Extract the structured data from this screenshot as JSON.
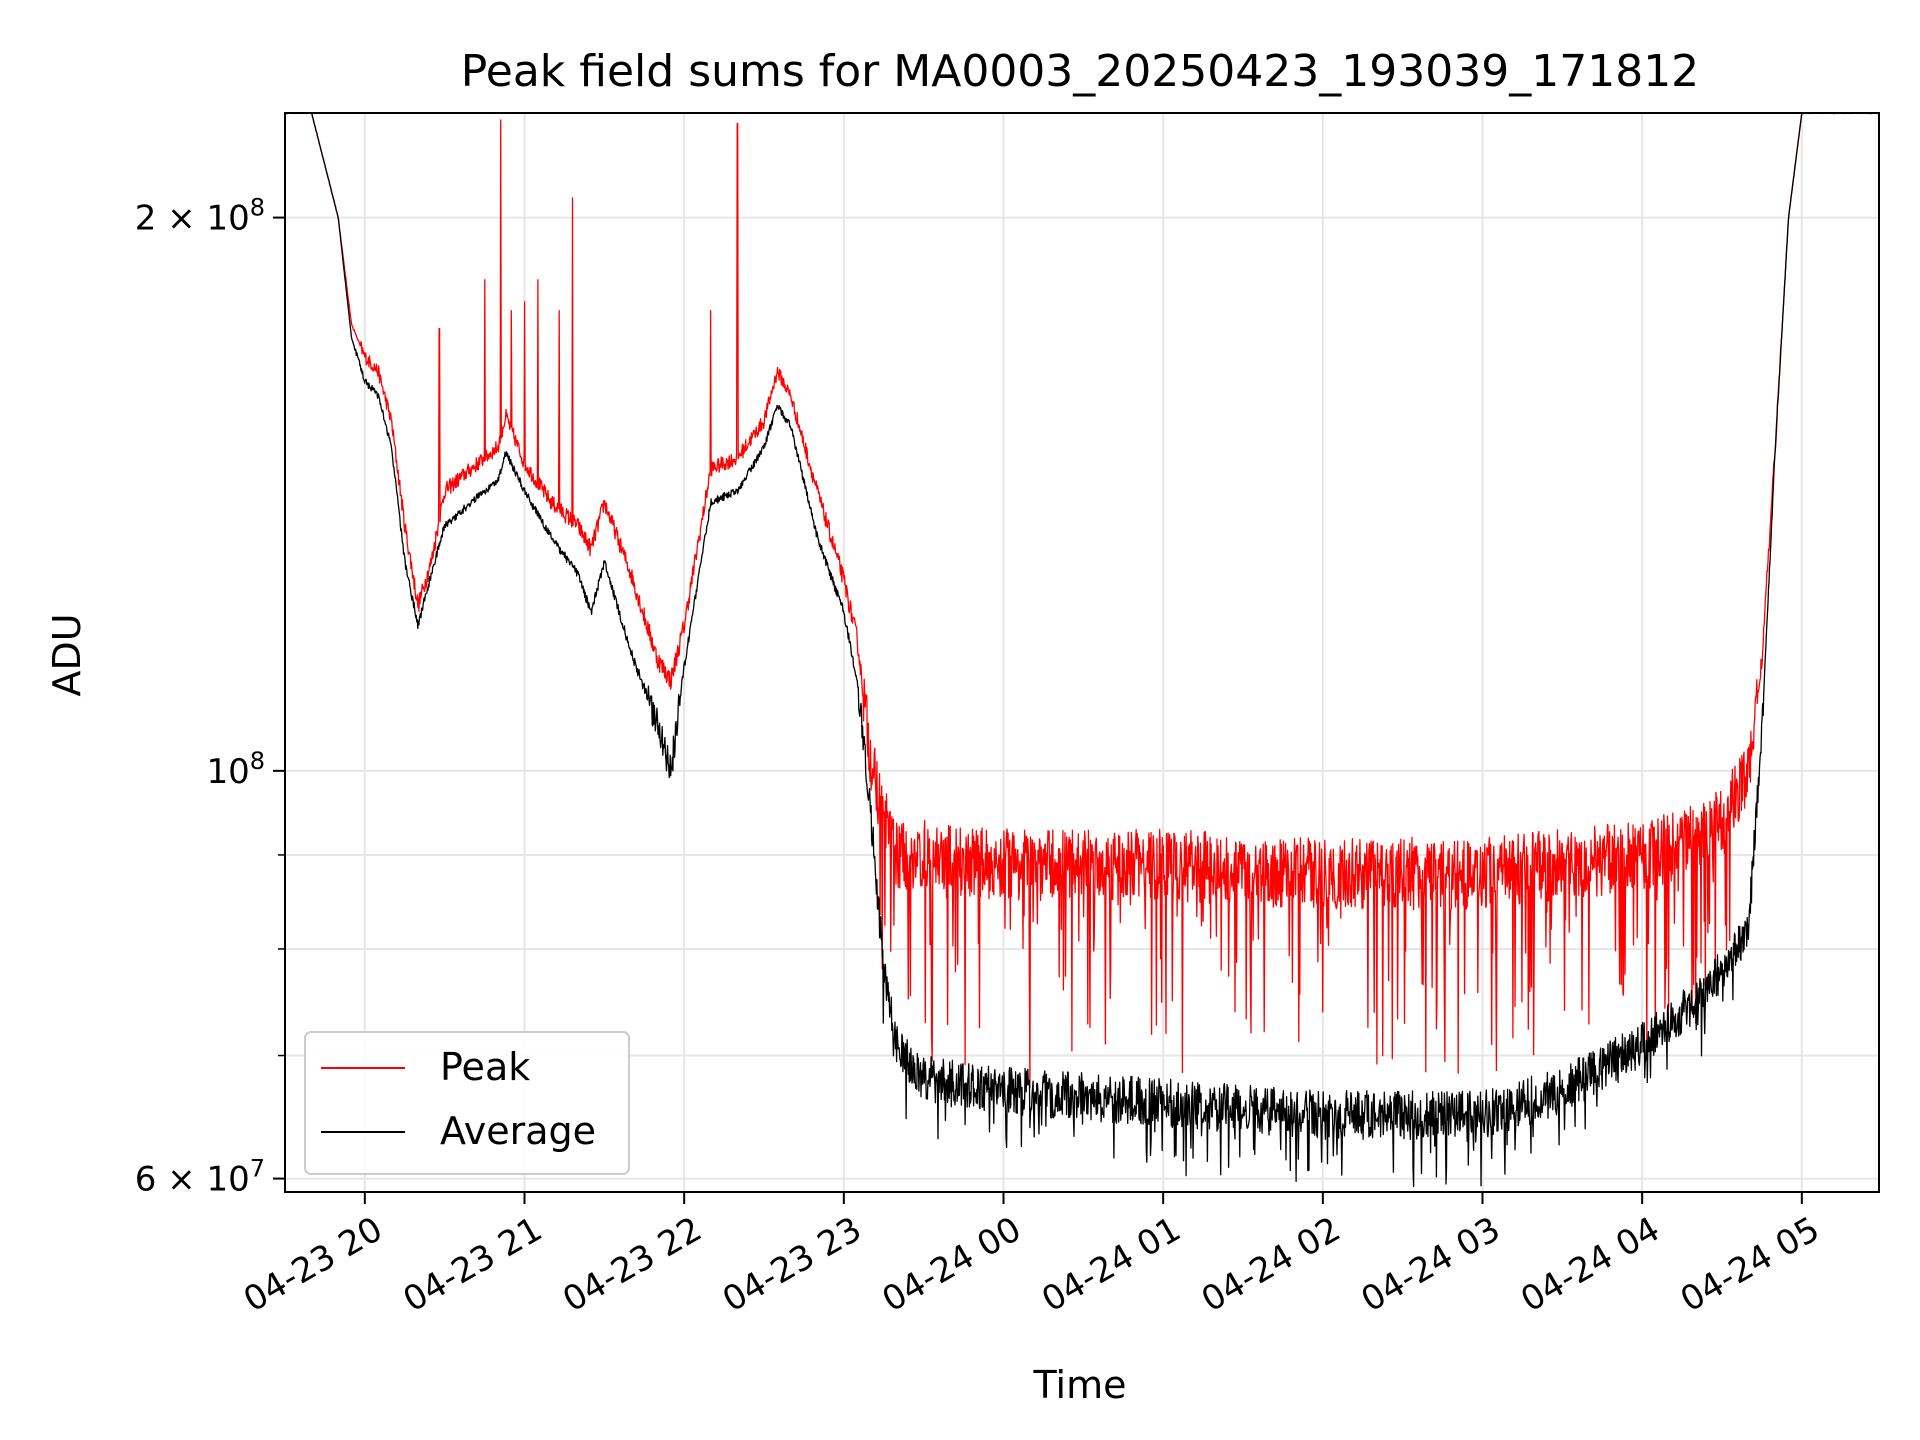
{
  "chart_data": {
    "type": "line",
    "title": "Peak field sums for MA0003_20250423_193039_171812",
    "xlabel": "Time",
    "ylabel": "ADU",
    "x_type": "time",
    "x_range": [
      "2025-04-23 19:30",
      "2025-04-24 05:29"
    ],
    "y_scale": "log",
    "y_range": [
      59000000,
      228000000
    ],
    "grid": true,
    "legend": {
      "position": "lower left",
      "entries": [
        "Peak",
        "Average"
      ]
    },
    "x_ticks": [
      "04-23 20",
      "04-23 21",
      "04-23 22",
      "04-23 23",
      "04-24 00",
      "04-24 01",
      "04-24 02",
      "04-24 03",
      "04-24 04",
      "04-24 05"
    ],
    "y_ticks": [
      {
        "value": 60000000,
        "label": "6 × 10",
        "exp": "7"
      },
      {
        "value": 100000000,
        "label": "10",
        "exp": "8"
      },
      {
        "value": 200000000,
        "label": "2 × 10",
        "exp": "8"
      }
    ],
    "y_minor_ticks": [
      70000000,
      80000000,
      90000000
    ],
    "series": [
      {
        "name": "Peak",
        "color": "#ff0000",
        "noise_amplitude": 4000000,
        "x": [
          "2025-04-23 19:30",
          "2025-04-23 19:40",
          "2025-04-23 19:50",
          "2025-04-23 19:55",
          "2025-04-23 20:00",
          "2025-04-23 20:05",
          "2025-04-23 20:10",
          "2025-04-23 20:15",
          "2025-04-23 20:20",
          "2025-04-23 20:25",
          "2025-04-23 20:30",
          "2025-04-23 20:40",
          "2025-04-23 20:50",
          "2025-04-23 20:53",
          "2025-04-23 21:00",
          "2025-04-23 21:10",
          "2025-04-23 21:20",
          "2025-04-23 21:25",
          "2025-04-23 21:30",
          "2025-04-23 21:40",
          "2025-04-23 21:50",
          "2025-04-23 21:55",
          "2025-04-23 22:00",
          "2025-04-23 22:10",
          "2025-04-23 22:20",
          "2025-04-23 22:30",
          "2025-04-23 22:35",
          "2025-04-23 22:40",
          "2025-04-23 22:50",
          "2025-04-23 23:00",
          "2025-04-23 23:05",
          "2025-04-23 23:10",
          "2025-04-23 23:15",
          "2025-04-23 23:20",
          "2025-04-23 23:30",
          "2025-04-24 00:00",
          "2025-04-24 01:00",
          "2025-04-24 02:00",
          "2025-04-24 03:00",
          "2025-04-24 04:00",
          "2025-04-24 04:20",
          "2025-04-24 04:30",
          "2025-04-24 04:40",
          "2025-04-24 04:45",
          "2025-04-24 04:50",
          "2025-04-24 04:55",
          "2025-04-24 05:00",
          "2025-04-24 05:29"
        ],
        "y": [
          228000000,
          228000000,
          200000000,
          175000000,
          168000000,
          165000000,
          155000000,
          136000000,
          123000000,
          130000000,
          142000000,
          146000000,
          150000000,
          156000000,
          147000000,
          140000000,
          136000000,
          132000000,
          140000000,
          128000000,
          115000000,
          112000000,
          120000000,
          146000000,
          148000000,
          155000000,
          165000000,
          160000000,
          142000000,
          127000000,
          118000000,
          102000000,
          94000000,
          90000000,
          90000000,
          89000000,
          89000000,
          88000000,
          88000000,
          90000000,
          92000000,
          94000000,
          100000000,
          115000000,
          150000000,
          200000000,
          228000000,
          228000000
        ],
        "spikes": [
          {
            "x": "2025-04-23 20:28",
            "y": 174000000
          },
          {
            "x": "2025-04-23 20:45",
            "y": 185000000
          },
          {
            "x": "2025-04-23 20:51",
            "y": 226000000
          },
          {
            "x": "2025-04-23 20:55",
            "y": 178000000
          },
          {
            "x": "2025-04-23 21:00",
            "y": 180000000
          },
          {
            "x": "2025-04-23 21:05",
            "y": 185000000
          },
          {
            "x": "2025-04-23 21:13",
            "y": 178000000
          },
          {
            "x": "2025-04-23 21:18",
            "y": 205000000
          },
          {
            "x": "2025-04-23 22:10",
            "y": 178000000
          },
          {
            "x": "2025-04-23 22:20",
            "y": 225000000
          }
        ]
      },
      {
        "name": "Average",
        "color": "#000000",
        "noise_amplitude": 2000000,
        "x": [
          "2025-04-23 19:30",
          "2025-04-23 19:40",
          "2025-04-23 19:50",
          "2025-04-23 19:55",
          "2025-04-23 20:00",
          "2025-04-23 20:05",
          "2025-04-23 20:10",
          "2025-04-23 20:15",
          "2025-04-23 20:20",
          "2025-04-23 20:25",
          "2025-04-23 20:30",
          "2025-04-23 20:40",
          "2025-04-23 20:50",
          "2025-04-23 20:53",
          "2025-04-23 21:00",
          "2025-04-23 21:10",
          "2025-04-23 21:20",
          "2025-04-23 21:25",
          "2025-04-23 21:30",
          "2025-04-23 21:40",
          "2025-04-23 21:50",
          "2025-04-23 21:55",
          "2025-04-23 22:00",
          "2025-04-23 22:10",
          "2025-04-23 22:20",
          "2025-04-23 22:30",
          "2025-04-23 22:35",
          "2025-04-23 22:40",
          "2025-04-23 22:50",
          "2025-04-23 23:00",
          "2025-04-23 23:05",
          "2025-04-23 23:10",
          "2025-04-23 23:15",
          "2025-04-23 23:20",
          "2025-04-23 23:30",
          "2025-04-24 00:00",
          "2025-04-24 01:00",
          "2025-04-24 02:00",
          "2025-04-24 03:00",
          "2025-04-24 03:30",
          "2025-04-24 04:00",
          "2025-04-24 04:20",
          "2025-04-24 04:30",
          "2025-04-24 04:40",
          "2025-04-24 04:45",
          "2025-04-24 04:50",
          "2025-04-24 04:55",
          "2025-04-24 05:00",
          "2025-04-24 05:29"
        ],
        "y": [
          228000000,
          228000000,
          200000000,
          172000000,
          163000000,
          160000000,
          150000000,
          130000000,
          120000000,
          128000000,
          136000000,
          140000000,
          144000000,
          149000000,
          142000000,
          134000000,
          128000000,
          122000000,
          130000000,
          116000000,
          106000000,
          100000000,
          114000000,
          140000000,
          142000000,
          150000000,
          158000000,
          154000000,
          134000000,
          122000000,
          112000000,
          95000000,
          78000000,
          71000000,
          68000000,
          67000000,
          66000000,
          65000000,
          65000000,
          67000000,
          71000000,
          75000000,
          78000000,
          82000000,
          105000000,
          150000000,
          200000000,
          228000000,
          228000000
        ],
        "spikes": []
      }
    ]
  }
}
